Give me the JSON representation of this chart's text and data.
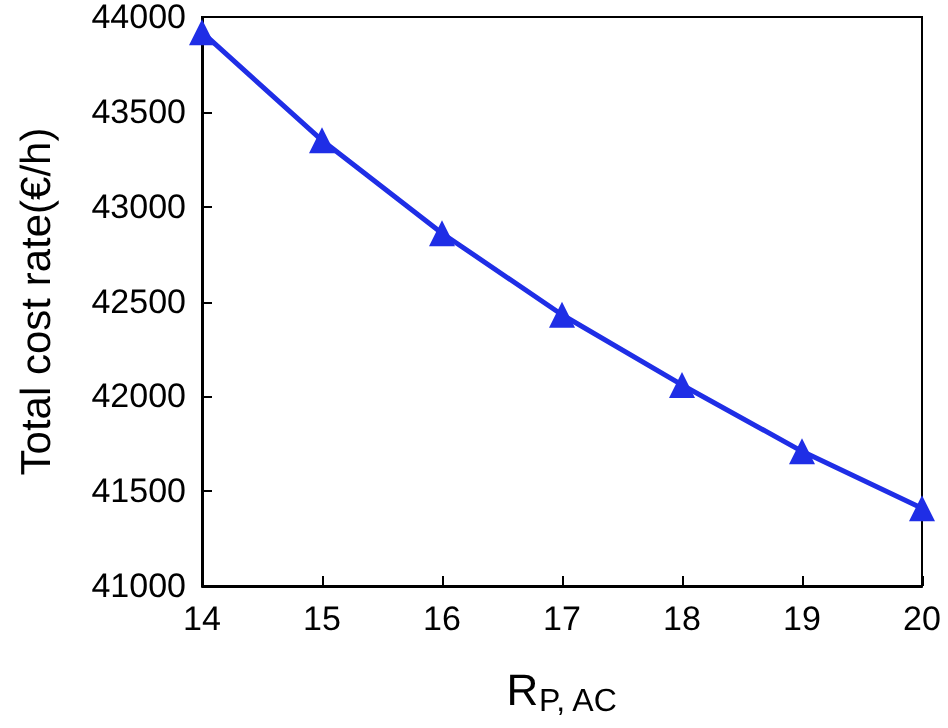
{
  "chart_data": {
    "type": "line",
    "xlabel": "R$_{P, AC}$",
    "ylabel": "Total cost rate(€/h)",
    "x": [
      14,
      15,
      16,
      17,
      18,
      19,
      20
    ],
    "series": [
      {
        "color": "#1f2ee6",
        "values": [
          43920,
          43350,
          42860,
          42430,
          42060,
          41710,
          41410
        ]
      }
    ],
    "xlim": [
      14,
      20
    ],
    "xticks": [
      14,
      15,
      16,
      17,
      18,
      19,
      20
    ],
    "ylim": [
      41000,
      44000
    ],
    "yticks": [
      41000,
      41500,
      42000,
      42500,
      43000,
      43500,
      44000
    ],
    "marker": "triangle",
    "line_style": "solid",
    "grid": false
  }
}
